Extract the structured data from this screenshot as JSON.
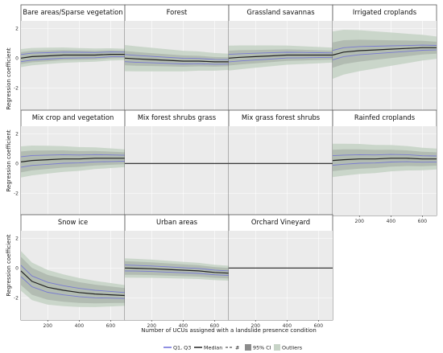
{
  "figure": {
    "ylabel": "Regression coefficient",
    "xlabel": "Number of UCUs assigned with a landslide presence condition",
    "x_ticks": [
      200,
      400,
      600
    ],
    "y_ticks": [
      2,
      0,
      -2
    ]
  },
  "legend": {
    "items": [
      {
        "label": "Q1, Q3",
        "kind": "line",
        "color": "#6a6ad8"
      },
      {
        "label": "Median",
        "kind": "line",
        "color": "#222222"
      },
      {
        "label": "#",
        "kind": "dashed",
        "color": "#555555"
      },
      {
        "label": "95% CI",
        "kind": "box",
        "color": "#8c8c8c"
      },
      {
        "label": "Outliers",
        "kind": "box",
        "color": "#c7d4c7"
      }
    ]
  },
  "colors": {
    "panel_bg": "#ebebeb",
    "grid": "#ffffff",
    "outlier_band": "#c7d4c7",
    "ci_band": "#a9b3a9",
    "median": "#222222",
    "quartile": "#6a6ad8",
    "border": "#555555"
  },
  "chart_data": {
    "type": "line",
    "x_range": [
      30,
      690
    ],
    "y_range": [
      -3.5,
      2.5
    ],
    "panels": [
      {
        "title": "Bare areas/Sparse vegetation",
        "x": [
          30,
          100,
          200,
          300,
          400,
          500,
          600,
          690
        ],
        "median": [
          0.0,
          0.1,
          0.15,
          0.2,
          0.2,
          0.2,
          0.25,
          0.25
        ],
        "q_spread": 0.15,
        "ci_spread": 0.25,
        "out_spread": 0.38,
        "spread_decay": 0.4
      },
      {
        "title": "Forest",
        "x": [
          30,
          100,
          200,
          300,
          400,
          500,
          600,
          690
        ],
        "median": [
          0.0,
          -0.05,
          -0.1,
          -0.15,
          -0.2,
          -0.2,
          -0.25,
          -0.25
        ],
        "q_spread": 0.15,
        "ci_spread": 0.3,
        "out_spread": 0.55,
        "spread_decay": 0.4
      },
      {
        "title": "Grassland savannas",
        "x": [
          30,
          100,
          200,
          300,
          400,
          500,
          600,
          690
        ],
        "median": [
          0.0,
          0.05,
          0.1,
          0.15,
          0.2,
          0.2,
          0.2,
          0.2
        ],
        "q_spread": 0.15,
        "ci_spread": 0.3,
        "out_spread": 0.5,
        "spread_decay": 0.45
      },
      {
        "title": "Irrigated croplands",
        "x": [
          30,
          100,
          200,
          300,
          400,
          500,
          600,
          690
        ],
        "median": [
          0.2,
          0.4,
          0.5,
          0.55,
          0.6,
          0.65,
          0.7,
          0.7
        ],
        "q_spread": 0.15,
        "ci_spread": 0.4,
        "out_spread": 0.75,
        "spread_decay": 0.75
      },
      {
        "title": "Mix crop and vegetation",
        "x": [
          30,
          100,
          200,
          300,
          400,
          500,
          600,
          690
        ],
        "median": [
          0.1,
          0.2,
          0.25,
          0.3,
          0.3,
          0.35,
          0.35,
          0.35
        ],
        "q_spread": 0.2,
        "ci_spread": 0.4,
        "out_spread": 0.6,
        "spread_decay": 0.5
      },
      {
        "title": "Mix forest shrubs grass",
        "x": [
          30,
          690
        ],
        "median": [
          0,
          0
        ],
        "q_spread": 0,
        "ci_spread": 0,
        "out_spread": 0,
        "spread_decay": 0
      },
      {
        "title": "Mix grass forest shrubs",
        "x": [
          30,
          690
        ],
        "median": [
          0,
          0
        ],
        "q_spread": 0,
        "ci_spread": 0,
        "out_spread": 0,
        "spread_decay": 0
      },
      {
        "title": "Rainfed croplands",
        "x": [
          30,
          100,
          200,
          300,
          400,
          500,
          600,
          690
        ],
        "median": [
          0.2,
          0.25,
          0.3,
          0.3,
          0.35,
          0.35,
          0.3,
          0.3
        ],
        "q_spread": 0.2,
        "ci_spread": 0.45,
        "out_spread": 0.7,
        "spread_decay": 0.4
      },
      {
        "title": "Snow ice",
        "x": [
          30,
          100,
          200,
          300,
          400,
          500,
          600,
          690
        ],
        "median": [
          -0.2,
          -0.9,
          -1.3,
          -1.5,
          -1.65,
          -1.75,
          -1.8,
          -1.85
        ],
        "q_spread": 0.2,
        "ci_spread": 0.5,
        "out_spread": 0.7,
        "spread_decay": 0.6
      },
      {
        "title": "Urban areas",
        "x": [
          30,
          100,
          200,
          300,
          400,
          500,
          600,
          690
        ],
        "median": [
          0.0,
          -0.02,
          -0.05,
          -0.1,
          -0.15,
          -0.2,
          -0.3,
          -0.35
        ],
        "q_spread": 0.15,
        "ci_spread": 0.35,
        "out_spread": 0.5,
        "spread_decay": 0.2
      },
      {
        "title": "Orchard Vineyard",
        "x": [
          30,
          690
        ],
        "median": [
          0,
          0
        ],
        "q_spread": 0,
        "ci_spread": 0,
        "out_spread": 0,
        "spread_decay": 0
      }
    ]
  }
}
